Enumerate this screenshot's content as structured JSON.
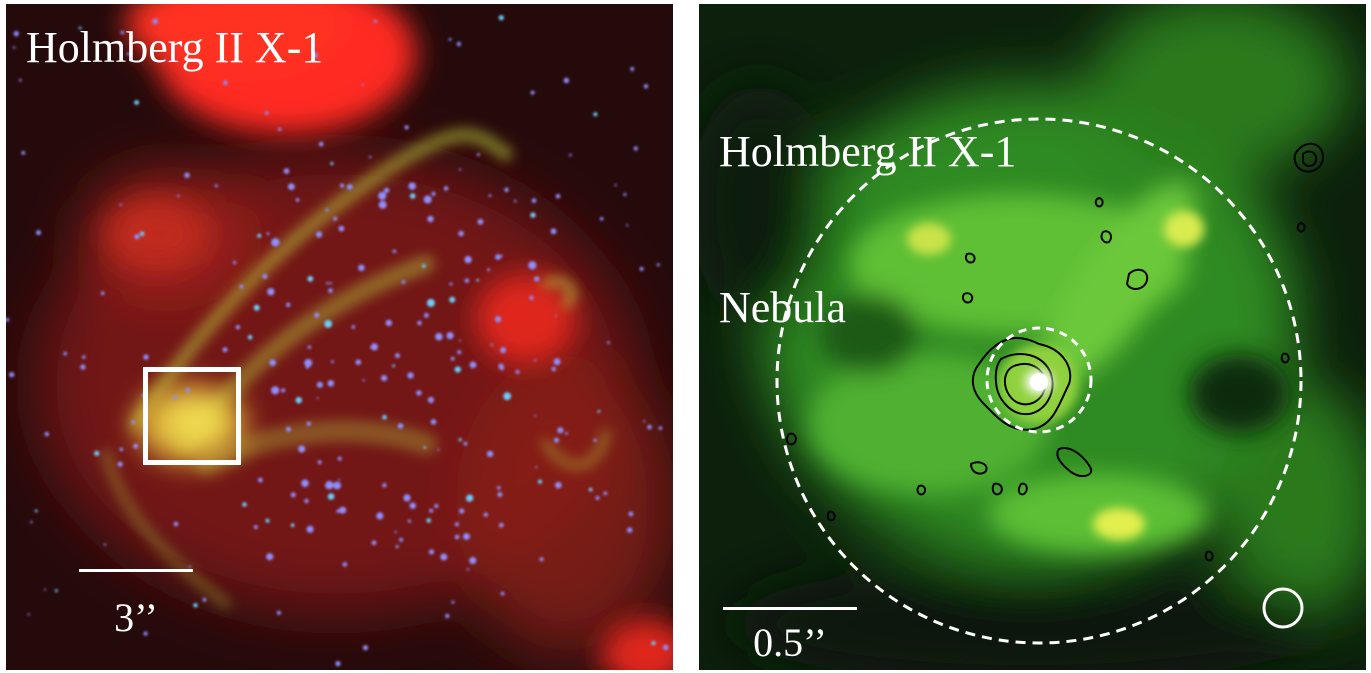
{
  "figure": {
    "left_panel": {
      "title": "Holmberg II X-1",
      "scale_label": "3’’",
      "colors": {
        "red_emission": "#ff2a18",
        "green_emission": "#b4d23a",
        "stars": "#8a8cff",
        "background": "#2a0c0c"
      }
    },
    "right_panel": {
      "title_line1": "Holmberg II X-1",
      "title_line2": "Nebula",
      "scale_label": "0.5’’",
      "colors": {
        "nebula": "#3fae2a",
        "bright_knot": "#e6f04a",
        "background": "#0b1f0b",
        "contours": "#000000"
      }
    }
  }
}
